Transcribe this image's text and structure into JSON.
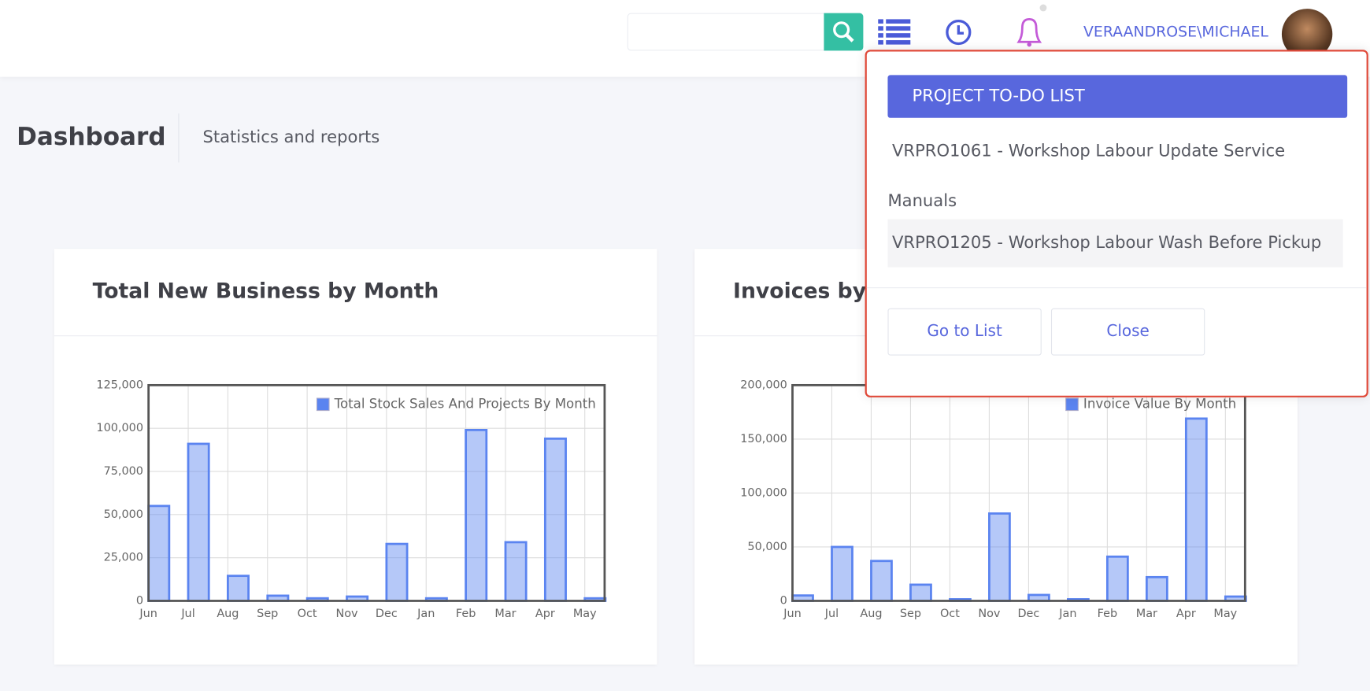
{
  "header": {
    "user": "VERAANDROSE\\MICHAEL"
  },
  "page": {
    "title": "Dashboard",
    "subtitle": "Statistics and reports"
  },
  "todo": {
    "title": "PROJECT TO-DO LIST",
    "items": [
      "VRPRO1061 - Workshop Labour Update Service Manuals",
      "VRPRO1205 - Workshop Labour Wash Before Pickup"
    ],
    "buttons": [
      "Go to List",
      "Close"
    ]
  },
  "chart_data": [
    {
      "type": "bar",
      "title": "Total New Business by Month",
      "categories": [
        "Jun",
        "Jul",
        "Aug",
        "Sep",
        "Oct",
        "Nov",
        "Dec",
        "Jan",
        "Feb",
        "Mar",
        "Apr",
        "May"
      ],
      "series": [
        {
          "name": "Total Stock Sales And Projects By Month",
          "color": "#5b84f0",
          "values": [
            55000,
            91000,
            14500,
            3000,
            1500,
            2500,
            33000,
            1500,
            99000,
            34000,
            94000,
            1500
          ]
        }
      ],
      "ylim": [
        0,
        125000
      ],
      "yticks": [
        0,
        {
          "value": 25000,
          "label": "25,000"
        },
        {
          "value": 50000,
          "label": "50,000"
        },
        {
          "value": 75000,
          "label": "75,000"
        },
        {
          "value": 100000,
          "label": "100,000"
        },
        {
          "value": 125000,
          "label": "125,000"
        }
      ],
      "grid": true,
      "legend": "top-right"
    },
    {
      "type": "bar",
      "title": "Invoices by Month",
      "categories": [
        "Jun",
        "Jul",
        "Aug",
        "Sep",
        "Oct",
        "Nov",
        "Dec",
        "Jan",
        "Feb",
        "Mar",
        "Apr",
        "May"
      ],
      "series": [
        {
          "name": "Invoice Value By Month",
          "color": "#5b84f0",
          "values": [
            5000,
            50000,
            37000,
            15000,
            1500,
            81000,
            5500,
            1500,
            41000,
            22000,
            169000,
            4000
          ]
        }
      ],
      "ylim": [
        0,
        200000
      ],
      "yticks": [
        0,
        {
          "value": 50000,
          "label": "50,000"
        },
        {
          "value": 100000,
          "label": "100,000"
        },
        {
          "value": 150000,
          "label": "150,000"
        },
        {
          "value": 200000,
          "label": "200,000"
        }
      ],
      "grid": true,
      "legend": "top-right"
    }
  ]
}
